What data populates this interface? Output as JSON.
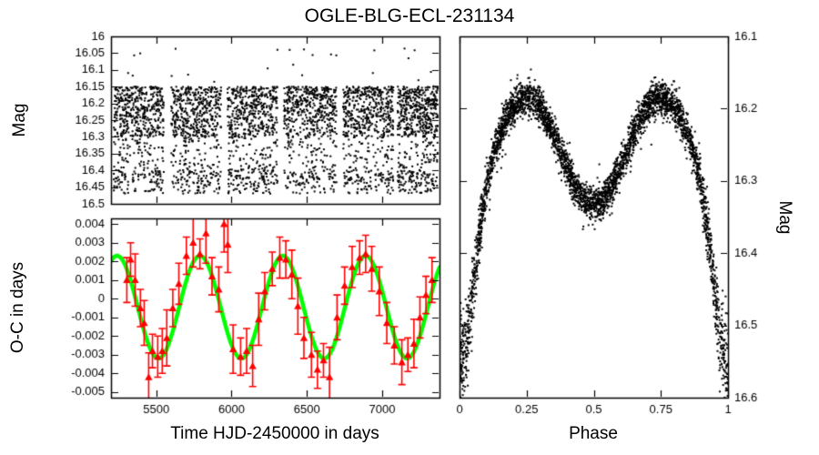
{
  "title": "OGLE-BLG-ECL-231134",
  "chart_data": [
    {
      "id": "magnitude-vs-time",
      "type": "scatter",
      "ylabel": "Mag",
      "xlabel": "",
      "xlim": [
        5200,
        7380
      ],
      "ylim": [
        16.0,
        16.5
      ],
      "y_inverted": true,
      "yticks": [
        16,
        16.05,
        16.1,
        16.15,
        16.2,
        16.25,
        16.3,
        16.35,
        16.4,
        16.45,
        16.5
      ],
      "xticks": [
        5500,
        6000,
        6500,
        7000
      ],
      "show_xtick_labels": false,
      "marker_color": "#000000",
      "description": "Seasonal OGLE photometry in six observing-season clumps; out-of-eclipse band 16.15-16.30 mag, eclipse points trailing down to 16.47 mag, rare bright outliers up to 16.03",
      "seasons": [
        [
          5218,
          5550
        ],
        [
          5599,
          5931
        ],
        [
          5973,
          6305
        ],
        [
          6347,
          6697
        ],
        [
          6740,
          7073
        ],
        [
          7102,
          7368
        ]
      ],
      "points_per_season": 600,
      "mag_distribution": {
        "band": [
          16.15,
          16.3
        ],
        "band_frac": 0.7,
        "tail": [
          16.3,
          16.44
        ],
        "tail_frac": 0.17,
        "eclipse": [
          16.4,
          16.47
        ],
        "eclipse_frac": 0.125,
        "bright": [
          16.03,
          16.15
        ]
      },
      "seed": 42
    },
    {
      "id": "o-c-vs-time",
      "type": "scatter",
      "subtype": "errorbars-with-model-line",
      "ylabel": "O-C in days",
      "xlabel": "Time HJD-2450000 in days",
      "xlim": [
        5200,
        7380
      ],
      "ylim": [
        -0.0053,
        0.0043
      ],
      "yticks": [
        0.004,
        0.003,
        0.002,
        0.001,
        0,
        -0.001,
        -0.002,
        -0.003,
        -0.004,
        -0.005
      ],
      "xticks": [
        5500,
        6000,
        6500,
        7000
      ],
      "show_xtick_labels": true,
      "point_color": "#ff0000",
      "line_color": "#00ff00",
      "sine_model": {
        "mean": -0.00045,
        "amplitude": 0.00275,
        "period_days": 550,
        "x_of_maximum": 5790
      },
      "points": [
        [
          5305,
          0.001,
          0.0012
        ],
        [
          5330,
          0.0021,
          0.0009
        ],
        [
          5360,
          0.001,
          0.0014
        ],
        [
          5395,
          -0.0005,
          0.001
        ],
        [
          5420,
          -0.0013,
          0.0012
        ],
        [
          5450,
          -0.0042,
          0.0013
        ],
        [
          5475,
          -0.0028,
          0.0009
        ],
        [
          5510,
          -0.0031,
          0.0011
        ],
        [
          5540,
          -0.0028,
          0.0012
        ],
        [
          5570,
          -0.0021,
          0.0015
        ],
        [
          5610,
          -0.0005,
          0.001
        ],
        [
          5650,
          0.0008,
          0.0011
        ],
        [
          5700,
          0.0023,
          0.001
        ],
        [
          5745,
          0.003,
          0.0013
        ],
        [
          5790,
          0.0024,
          0.0008
        ],
        [
          5830,
          0.0035,
          0.0016
        ],
        [
          5870,
          0.0012,
          0.001
        ],
        [
          5915,
          0.0005,
          0.0012
        ],
        [
          5950,
          0.004,
          0.0015
        ],
        [
          5975,
          0.0029,
          0.0015
        ],
        [
          6010,
          -0.0027,
          0.0013
        ],
        [
          6060,
          -0.0031,
          0.001
        ],
        [
          6100,
          -0.0028,
          0.0012
        ],
        [
          6140,
          -0.0036,
          0.0011
        ],
        [
          6180,
          -0.0011,
          0.0014
        ],
        [
          6220,
          0.0004,
          0.001
        ],
        [
          6270,
          0.0016,
          0.0009
        ],
        [
          6320,
          0.0022,
          0.0011
        ],
        [
          6360,
          0.0021,
          0.001
        ],
        [
          6400,
          0.0013,
          0.0013
        ],
        [
          6440,
          -0.0004,
          0.0015
        ],
        [
          6480,
          -0.0021,
          0.0011
        ],
        [
          6530,
          -0.003,
          0.0012
        ],
        [
          6570,
          -0.0038,
          0.001
        ],
        [
          6610,
          -0.0033,
          0.0009
        ],
        [
          6650,
          -0.0042,
          0.0016
        ],
        [
          6700,
          -0.001,
          0.0012
        ],
        [
          6750,
          0.0007,
          0.001
        ],
        [
          6800,
          0.0017,
          0.0011
        ],
        [
          6850,
          0.0022,
          0.0009
        ],
        [
          6890,
          0.0024,
          0.001
        ],
        [
          6930,
          0.0016,
          0.0012
        ],
        [
          6980,
          0.0004,
          0.0013
        ],
        [
          7030,
          -0.0013,
          0.0011
        ],
        [
          7080,
          -0.0025,
          0.001
        ],
        [
          7130,
          -0.0034,
          0.0012
        ],
        [
          7170,
          -0.003,
          0.0009
        ],
        [
          7210,
          -0.0024,
          0.0013
        ],
        [
          7250,
          -0.001,
          0.0011
        ],
        [
          7290,
          0.0002,
          0.001
        ],
        [
          7330,
          0.001,
          0.0012
        ]
      ]
    },
    {
      "id": "phased-light-curve",
      "type": "scatter",
      "ylabel": "Mag",
      "ylabel_side": "right",
      "xlabel": "Phase",
      "xlim": [
        0,
        1
      ],
      "ylim": [
        16.1,
        16.6
      ],
      "y_inverted": true,
      "yticks": [
        16.1,
        16.2,
        16.3,
        16.4,
        16.5,
        16.6
      ],
      "xticks": [
        0,
        0.25,
        0.5,
        0.75,
        1
      ],
      "show_xtick_labels": true,
      "marker_color": "#000000",
      "description": "Phase-folded eclipsing-binary light curve: deep primary minimum at phase 0/1 reaching ~16.55, maxima ~16.185 at phases 0.25 and 0.75, shallow rounded secondary minimum ~16.335 at phase 0.5",
      "n_points": 3800,
      "eclipse_model": {
        "base_mag": 16.255,
        "ellipsoidal_amplitude": 0.07,
        "primary_eclipse_depth": 0.23,
        "primary_eclipse_sigma": 0.05,
        "primary_minimum_mag": 16.555,
        "secondary_eclipse_depth": 0.01,
        "secondary_center_phase": 0.5,
        "secondary_eclipse_sigma": 0.08,
        "secondary_minimum_mag": 16.335,
        "maximum_mag": 16.185,
        "noise_sigma": 0.012
      },
      "seed": 7
    }
  ]
}
